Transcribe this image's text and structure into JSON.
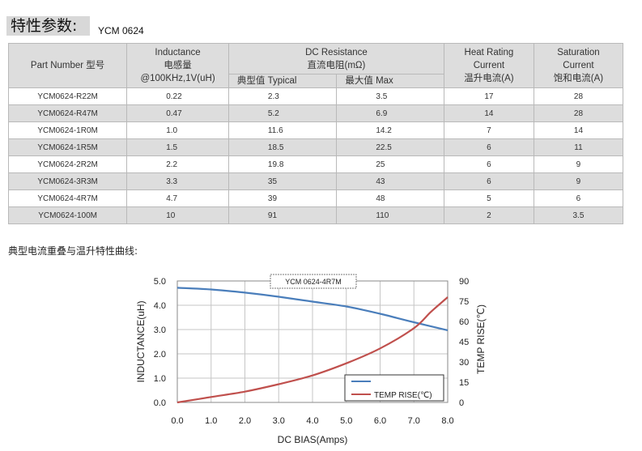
{
  "title": {
    "label": "特性参数:",
    "model": "YCM 0624"
  },
  "table": {
    "headers": {
      "part_number": "Part Number  型号",
      "inductance": [
        "Inductance",
        "电感量",
        "@100KHz,1V(uH)"
      ],
      "dc_resistance": [
        "DC Resistance",
        "直流电阻(mΩ)"
      ],
      "dcr_typical": "典型值 Typical",
      "dcr_max": "最大值 Max",
      "heat_rating": [
        "Heat Rating",
        "Current",
        "温升电流(A)"
      ],
      "saturation": [
        "Saturation",
        "Current",
        "饱和电流(A)"
      ]
    },
    "rows": [
      {
        "part": "YCM0624-R22M",
        "inductance": "0.22",
        "typ": "2.3",
        "max": "3.5",
        "heat": "17",
        "sat": "28"
      },
      {
        "part": "YCM0624-R47M",
        "inductance": "0.47",
        "typ": "5.2",
        "max": "6.9",
        "heat": "14",
        "sat": "28"
      },
      {
        "part": "YCM0624-1R0M",
        "inductance": "1.0",
        "typ": "11.6",
        "max": "14.2",
        "heat": "7",
        "sat": "14"
      },
      {
        "part": "YCM0624-1R5M",
        "inductance": "1.5",
        "typ": "18.5",
        "max": "22.5",
        "heat": "6",
        "sat": "11"
      },
      {
        "part": "YCM0624-2R2M",
        "inductance": "2.2",
        "typ": "19.8",
        "max": "25",
        "heat": "6",
        "sat": "9"
      },
      {
        "part": "YCM0624-3R3M",
        "inductance": "3.3",
        "typ": "35",
        "max": "43",
        "heat": "6",
        "sat": "9"
      },
      {
        "part": "YCM0624-4R7M",
        "inductance": "4.7",
        "typ": "39",
        "max": "48",
        "heat": "5",
        "sat": "6"
      },
      {
        "part": "YCM0624-100M",
        "inductance": "10",
        "typ": "91",
        "max": "110",
        "heat": "2",
        "sat": "3.5"
      }
    ]
  },
  "section_title": "典型电流重叠与温升特性曲线:",
  "chart_data": {
    "type": "line",
    "title": "YCM 0624-4R7M",
    "xlabel": "DC BIAS(Amps)",
    "ylabel_left": "INDUCTANCE(uH)",
    "ylabel_right": "TEMP RISE(℃)",
    "xlim": [
      0,
      8
    ],
    "ylim_left": [
      0,
      5
    ],
    "ylim_right": [
      0,
      90
    ],
    "x_ticks": [
      "0.0",
      "1.0",
      "2.0",
      "3.0",
      "4.0",
      "5.0",
      "6.0",
      "7.0",
      "8.0"
    ],
    "y_left_ticks": [
      "0.0",
      "1.0",
      "2.0",
      "3.0",
      "4.0",
      "5.0"
    ],
    "y_right_ticks": [
      "0",
      "15",
      "30",
      "45",
      "60",
      "75",
      "90"
    ],
    "grid": true,
    "legend_placement": "bottom-right",
    "series": [
      {
        "name": "",
        "axis": "left",
        "color": "#4a7ebb",
        "x": [
          0,
          1,
          2,
          3,
          4,
          5,
          6,
          7,
          8
        ],
        "y": [
          4.72,
          4.65,
          4.52,
          4.35,
          4.15,
          3.95,
          3.65,
          3.3,
          2.97
        ]
      },
      {
        "name": "TEMP RISE(℃)",
        "axis": "right",
        "color": "#c0504d",
        "x": [
          0,
          1,
          2,
          3,
          4,
          5,
          6,
          7,
          7.5,
          8
        ],
        "y": [
          0,
          4,
          8,
          13.5,
          20,
          29,
          40,
          55,
          67,
          78
        ]
      }
    ]
  }
}
